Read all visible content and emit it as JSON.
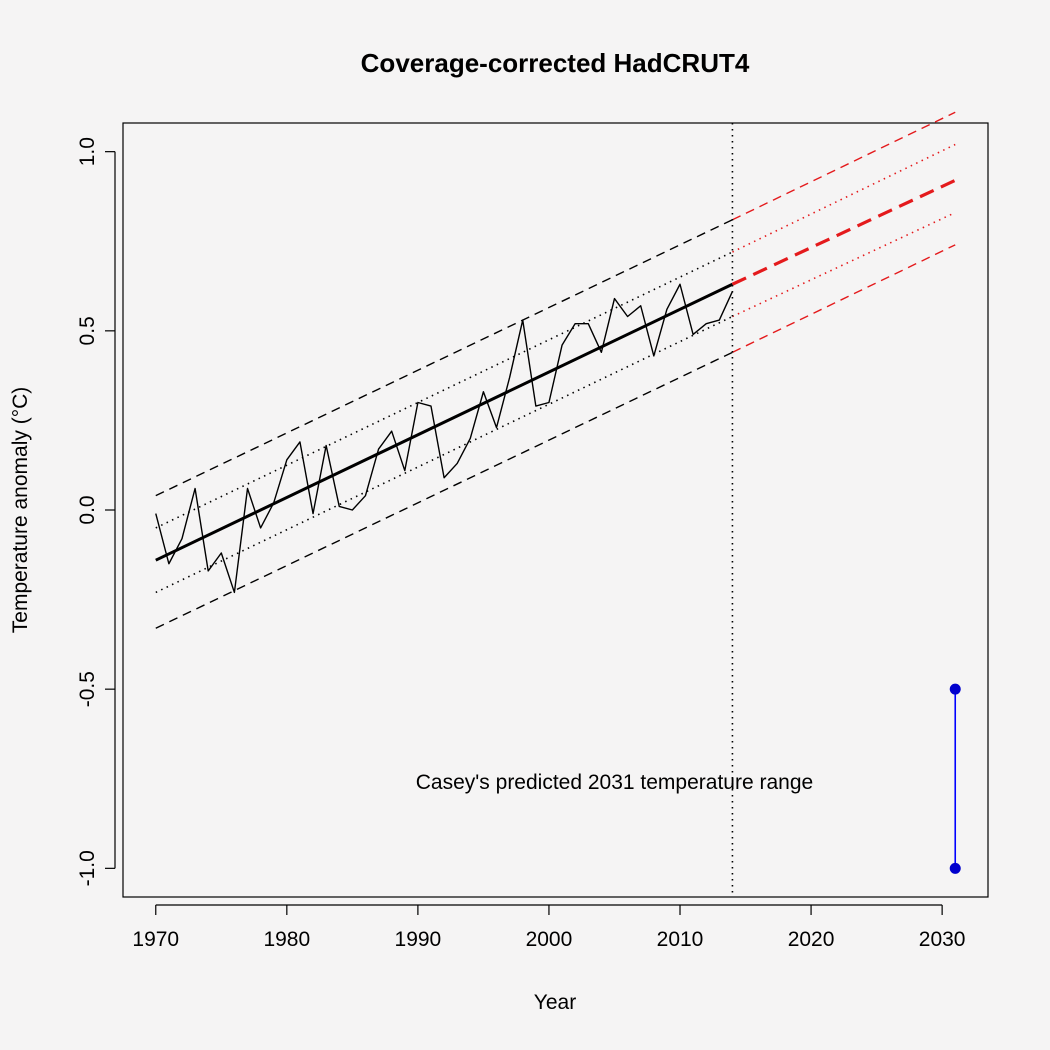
{
  "chart_data": {
    "type": "line",
    "title": "Coverage-corrected HadCRUT4",
    "xlabel": "Year",
    "ylabel": "Temperature anomaly (°C)",
    "xlim": [
      1967.5,
      2033.5
    ],
    "ylim": [
      -1.08,
      1.08
    ],
    "x_ticks": [
      1970,
      1980,
      1990,
      2000,
      2010,
      2020,
      2030
    ],
    "y_ticks": [
      -1.0,
      -0.5,
      0.0,
      0.5,
      1.0
    ],
    "y_tick_labels": [
      "-1.0",
      "-0.5",
      "0.0",
      "0.5",
      "1.0"
    ],
    "grid": false,
    "colors": {
      "observed": "#000000",
      "forecast": "#e41a1c",
      "prediction": "#0000ff",
      "prediction_point": "#0000cd",
      "background": "#f5f4f4"
    },
    "series": [
      {
        "name": "Observed annual anomaly",
        "style": "solid-thin",
        "x": [
          1970,
          1971,
          1972,
          1973,
          1974,
          1975,
          1976,
          1977,
          1978,
          1979,
          1980,
          1981,
          1982,
          1983,
          1984,
          1985,
          1986,
          1987,
          1988,
          1989,
          1990,
          1991,
          1992,
          1993,
          1994,
          1995,
          1996,
          1997,
          1998,
          1999,
          2000,
          2001,
          2002,
          2003,
          2004,
          2005,
          2006,
          2007,
          2008,
          2009,
          2010,
          2011,
          2012,
          2013,
          2014
        ],
        "values": [
          -0.01,
          -0.15,
          -0.08,
          0.06,
          -0.17,
          -0.12,
          -0.23,
          0.06,
          -0.05,
          0.02,
          0.14,
          0.19,
          -0.01,
          0.18,
          0.01,
          0.0,
          0.04,
          0.17,
          0.22,
          0.11,
          0.3,
          0.29,
          0.09,
          0.13,
          0.2,
          0.33,
          0.23,
          0.37,
          0.53,
          0.29,
          0.3,
          0.46,
          0.52,
          0.52,
          0.44,
          0.59,
          0.54,
          0.57,
          0.43,
          0.56,
          0.63,
          0.49,
          0.52,
          0.53,
          0.61
        ]
      },
      {
        "name": "Linear trend",
        "style": "solid-thick",
        "x": [
          1970,
          2014
        ],
        "values": [
          -0.14,
          0.63
        ]
      },
      {
        "name": "Trend 1-sigma band (upper)",
        "style": "dotted",
        "x": [
          1970,
          2014
        ],
        "values": [
          -0.05,
          0.72
        ]
      },
      {
        "name": "Trend 1-sigma band (lower)",
        "style": "dotted",
        "x": [
          1970,
          2014
        ],
        "values": [
          -0.23,
          0.54
        ]
      },
      {
        "name": "Trend 2-sigma band (upper)",
        "style": "dashed",
        "x": [
          1970,
          2014
        ],
        "values": [
          0.04,
          0.81
        ]
      },
      {
        "name": "Trend 2-sigma band (lower)",
        "style": "dashed",
        "x": [
          1970,
          2014
        ],
        "values": [
          -0.33,
          0.44
        ]
      },
      {
        "name": "Forecast trend",
        "style": "forecast-thick-dashed",
        "x": [
          2014,
          2031
        ],
        "values": [
          0.63,
          0.92
        ]
      },
      {
        "name": "Forecast 1-sigma (upper)",
        "style": "forecast-dotted",
        "x": [
          2014,
          2031
        ],
        "values": [
          0.72,
          1.02
        ]
      },
      {
        "name": "Forecast 1-sigma (lower)",
        "style": "forecast-dotted",
        "x": [
          2014,
          2031
        ],
        "values": [
          0.54,
          0.83
        ]
      },
      {
        "name": "Forecast 2-sigma (upper)",
        "style": "forecast-dashed",
        "x": [
          2014,
          2031
        ],
        "values": [
          0.81,
          1.11
        ]
      },
      {
        "name": "Forecast 2-sigma (lower)",
        "style": "forecast-dashed",
        "x": [
          2014,
          2031
        ],
        "values": [
          0.44,
          0.74
        ]
      }
    ],
    "vertical_line": {
      "x": 2014,
      "style": "dotted"
    },
    "prediction_range": {
      "x": 2031,
      "low": -1.0,
      "high": -0.5
    },
    "annotations": [
      {
        "text": "Casey's predicted 2031 temperature range",
        "x": 2005,
        "y": -0.75
      }
    ]
  }
}
